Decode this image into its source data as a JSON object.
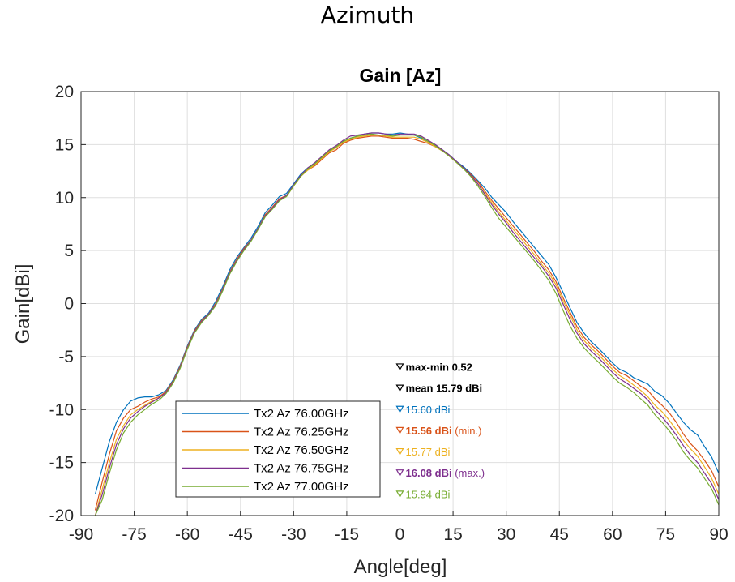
{
  "page": {
    "title": "Azimuth"
  },
  "chart_data": {
    "type": "line",
    "title": "Gain [Az]",
    "xlabel": "Angle[deg]",
    "ylabel": "Gain[dBi]",
    "xlim": [
      -90,
      90
    ],
    "ylim": [
      -20,
      20
    ],
    "xticks": [
      -90,
      -75,
      -60,
      -45,
      -30,
      -15,
      0,
      15,
      30,
      45,
      60,
      75,
      90
    ],
    "yticks": [
      -20,
      -15,
      -10,
      -5,
      0,
      5,
      10,
      15,
      20
    ],
    "grid": true,
    "legend_position": "lower-left",
    "x": [
      -86,
      -84,
      -82,
      -80,
      -78,
      -76,
      -74,
      -72,
      -70,
      -68,
      -66,
      -64,
      -62,
      -60,
      -58,
      -56,
      -54,
      -52,
      -50,
      -48,
      -46,
      -44,
      -42,
      -40,
      -38,
      -36,
      -34,
      -32,
      -30,
      -28,
      -26,
      -24,
      -22,
      -20,
      -18,
      -16,
      -14,
      -12,
      -10,
      -8,
      -6,
      -4,
      -2,
      0,
      2,
      4,
      6,
      8,
      10,
      12,
      14,
      16,
      18,
      20,
      22,
      24,
      26,
      28,
      30,
      32,
      34,
      36,
      38,
      40,
      42,
      44,
      46,
      48,
      50,
      52,
      54,
      56,
      58,
      60,
      62,
      64,
      66,
      68,
      70,
      72,
      74,
      76,
      78,
      80,
      82,
      84,
      86,
      88,
      90
    ],
    "series": [
      {
        "name": "Tx2 Az 76.00GHz",
        "color": "#0072BD",
        "values": [
          -18,
          -15.5,
          -13,
          -11.2,
          -10,
          -9.2,
          -8.9,
          -8.8,
          -8.8,
          -8.6,
          -8.2,
          -7.2,
          -5.8,
          -4,
          -2.5,
          -1.5,
          -0.9,
          0.2,
          1.6,
          3.2,
          4.4,
          5.3,
          6.2,
          7.3,
          8.6,
          9.3,
          10.1,
          10.4,
          11.3,
          12.2,
          12.8,
          13.2,
          13.8,
          14.4,
          14.7,
          15.3,
          15.6,
          15.8,
          16,
          16.1,
          16.1,
          16,
          16,
          16.1,
          16,
          15.9,
          15.6,
          15.3,
          14.9,
          14.5,
          14,
          13.4,
          12.9,
          12.3,
          11.6,
          10.9,
          10,
          9.3,
          8.6,
          7.7,
          6.9,
          6.1,
          5.3,
          4.5,
          3.7,
          2.5,
          1.1,
          -0.4,
          -1.8,
          -2.8,
          -3.6,
          -4.2,
          -4.9,
          -5.6,
          -6.2,
          -6.5,
          -7,
          -7.3,
          -7.6,
          -8.3,
          -8.7,
          -9.4,
          -10.3,
          -11.2,
          -11.9,
          -12.4,
          -13.5,
          -14.5,
          -16
        ]
      },
      {
        "name": "Tx2 Az 76.25GHz",
        "color": "#D95319",
        "values": [
          -19.5,
          -16.8,
          -14.2,
          -12,
          -10.8,
          -10,
          -9.7,
          -9.3,
          -9,
          -8.8,
          -8.3,
          -7.3,
          -5.9,
          -4.1,
          -2.6,
          -1.6,
          -1,
          0,
          1.4,
          3,
          4.2,
          5.2,
          6,
          7.1,
          8.4,
          9.1,
          9.9,
          10.2,
          11.1,
          12,
          12.6,
          13,
          13.6,
          14.2,
          14.5,
          15.1,
          15.4,
          15.6,
          15.7,
          15.8,
          15.8,
          15.7,
          15.6,
          15.6,
          15.6,
          15.5,
          15.3,
          15.1,
          14.8,
          14.4,
          13.9,
          13.3,
          12.8,
          12.2,
          11.5,
          10.6,
          9.7,
          8.9,
          8.1,
          7.3,
          6.5,
          5.7,
          4.9,
          4,
          3.2,
          2.1,
          0.6,
          -0.8,
          -2.2,
          -3.2,
          -3.9,
          -4.5,
          -5.2,
          -5.9,
          -6.5,
          -6.8,
          -7.3,
          -7.8,
          -8.2,
          -9,
          -9.6,
          -10.3,
          -11.2,
          -12.3,
          -13.2,
          -13.9,
          -14.8,
          -15.8,
          -17.3
        ]
      },
      {
        "name": "Tx2 Az 76.50GHz",
        "color": "#EDB120",
        "values": [
          -20,
          -17.5,
          -15,
          -12.8,
          -11.5,
          -10.5,
          -10,
          -9.6,
          -9.2,
          -8.9,
          -8.4,
          -7.4,
          -6,
          -4.2,
          -2.7,
          -1.7,
          -1,
          -0.1,
          1.3,
          2.9,
          4.1,
          5.1,
          6,
          7.1,
          8.3,
          9,
          9.8,
          10.1,
          11.1,
          12,
          12.6,
          13.1,
          13.7,
          14.3,
          14.7,
          15.2,
          15.5,
          15.7,
          15.8,
          15.9,
          15.9,
          15.8,
          15.7,
          15.7,
          15.7,
          15.7,
          15.5,
          15.2,
          14.8,
          14.4,
          13.9,
          13.3,
          12.7,
          12.1,
          11.3,
          10.4,
          9.5,
          8.6,
          7.8,
          7,
          6.2,
          5.4,
          4.6,
          3.7,
          2.9,
          1.8,
          0.3,
          -1.1,
          -2.5,
          -3.5,
          -4.2,
          -4.8,
          -5.5,
          -6.2,
          -6.8,
          -7.2,
          -7.7,
          -8.2,
          -8.8,
          -9.6,
          -10.2,
          -11,
          -11.9,
          -12.9,
          -13.7,
          -14.4,
          -15.4,
          -16.5,
          -18
        ]
      },
      {
        "name": "Tx2 Az 76.75GHz",
        "color": "#7E2F8E",
        "values": [
          -20,
          -18,
          -15.5,
          -13.3,
          -11.8,
          -10.8,
          -10.2,
          -9.7,
          -9.3,
          -8.9,
          -8.4,
          -7.4,
          -6,
          -4.2,
          -2.7,
          -1.7,
          -1,
          -0.1,
          1.3,
          2.9,
          4.1,
          5.1,
          6,
          7.1,
          8.3,
          9,
          9.8,
          10.2,
          11.2,
          12.1,
          12.8,
          13.3,
          13.9,
          14.5,
          14.9,
          15.4,
          15.8,
          15.9,
          16,
          16.1,
          16.1,
          16,
          15.9,
          16,
          16,
          16,
          15.8,
          15.4,
          15,
          14.5,
          14,
          13.4,
          12.8,
          12.1,
          11.3,
          10.3,
          9.3,
          8.4,
          7.6,
          6.7,
          5.9,
          5.1,
          4.3,
          3.5,
          2.6,
          1.5,
          0,
          -1.5,
          -2.8,
          -3.8,
          -4.5,
          -5.1,
          -5.8,
          -6.5,
          -7.1,
          -7.5,
          -8,
          -8.5,
          -9.1,
          -10,
          -10.7,
          -11.5,
          -12.4,
          -13.4,
          -14.3,
          -15,
          -16,
          -17,
          -18.5
        ]
      },
      {
        "name": "Tx2 Az 77.00GHz",
        "color": "#77AC30",
        "values": [
          -20,
          -18.5,
          -16,
          -13.8,
          -12.2,
          -11.2,
          -10.5,
          -10,
          -9.5,
          -9.1,
          -8.5,
          -7.5,
          -6.1,
          -4.3,
          -2.8,
          -1.8,
          -1.1,
          -0.2,
          1.2,
          2.8,
          4,
          5,
          5.9,
          7,
          8.2,
          8.9,
          9.7,
          10.1,
          11.1,
          12,
          12.7,
          13.2,
          13.8,
          14.4,
          14.8,
          15.3,
          15.6,
          15.8,
          15.9,
          16,
          15.9,
          15.9,
          15.8,
          15.9,
          15.9,
          15.9,
          15.7,
          15.3,
          14.9,
          14.4,
          13.9,
          13.3,
          12.7,
          12,
          11.1,
          10.1,
          9,
          8,
          7.2,
          6.4,
          5.6,
          4.8,
          4,
          3.1,
          2.2,
          1,
          -0.6,
          -2.1,
          -3.3,
          -4.2,
          -4.9,
          -5.5,
          -6.2,
          -6.9,
          -7.5,
          -7.9,
          -8.4,
          -9,
          -9.6,
          -10.5,
          -11.2,
          -12,
          -12.9,
          -14,
          -14.8,
          -15.5,
          -16.5,
          -17.5,
          -19
        ]
      }
    ],
    "annotations": [
      {
        "text": "max-min 0.52",
        "color": "#000000",
        "bold": true,
        "y": -6
      },
      {
        "text": "mean 15.79 dBi",
        "color": "#000000",
        "bold": true,
        "y": -8
      },
      {
        "text": "15.60 dBi",
        "suffix": "",
        "color": "#0072BD",
        "bold": false,
        "y": -10
      },
      {
        "text": "15.56 dBi",
        "suffix": " (min.)",
        "color": "#D95319",
        "bold": true,
        "y": -12
      },
      {
        "text": "15.77 dBi",
        "suffix": "",
        "color": "#EDB120",
        "bold": false,
        "y": -14
      },
      {
        "text": "16.08 dBi",
        "suffix": " (max.)",
        "color": "#7E2F8E",
        "bold": true,
        "y": -16
      },
      {
        "text": "15.94 dBi",
        "suffix": "",
        "color": "#77AC30",
        "bold": false,
        "y": -18
      }
    ]
  }
}
